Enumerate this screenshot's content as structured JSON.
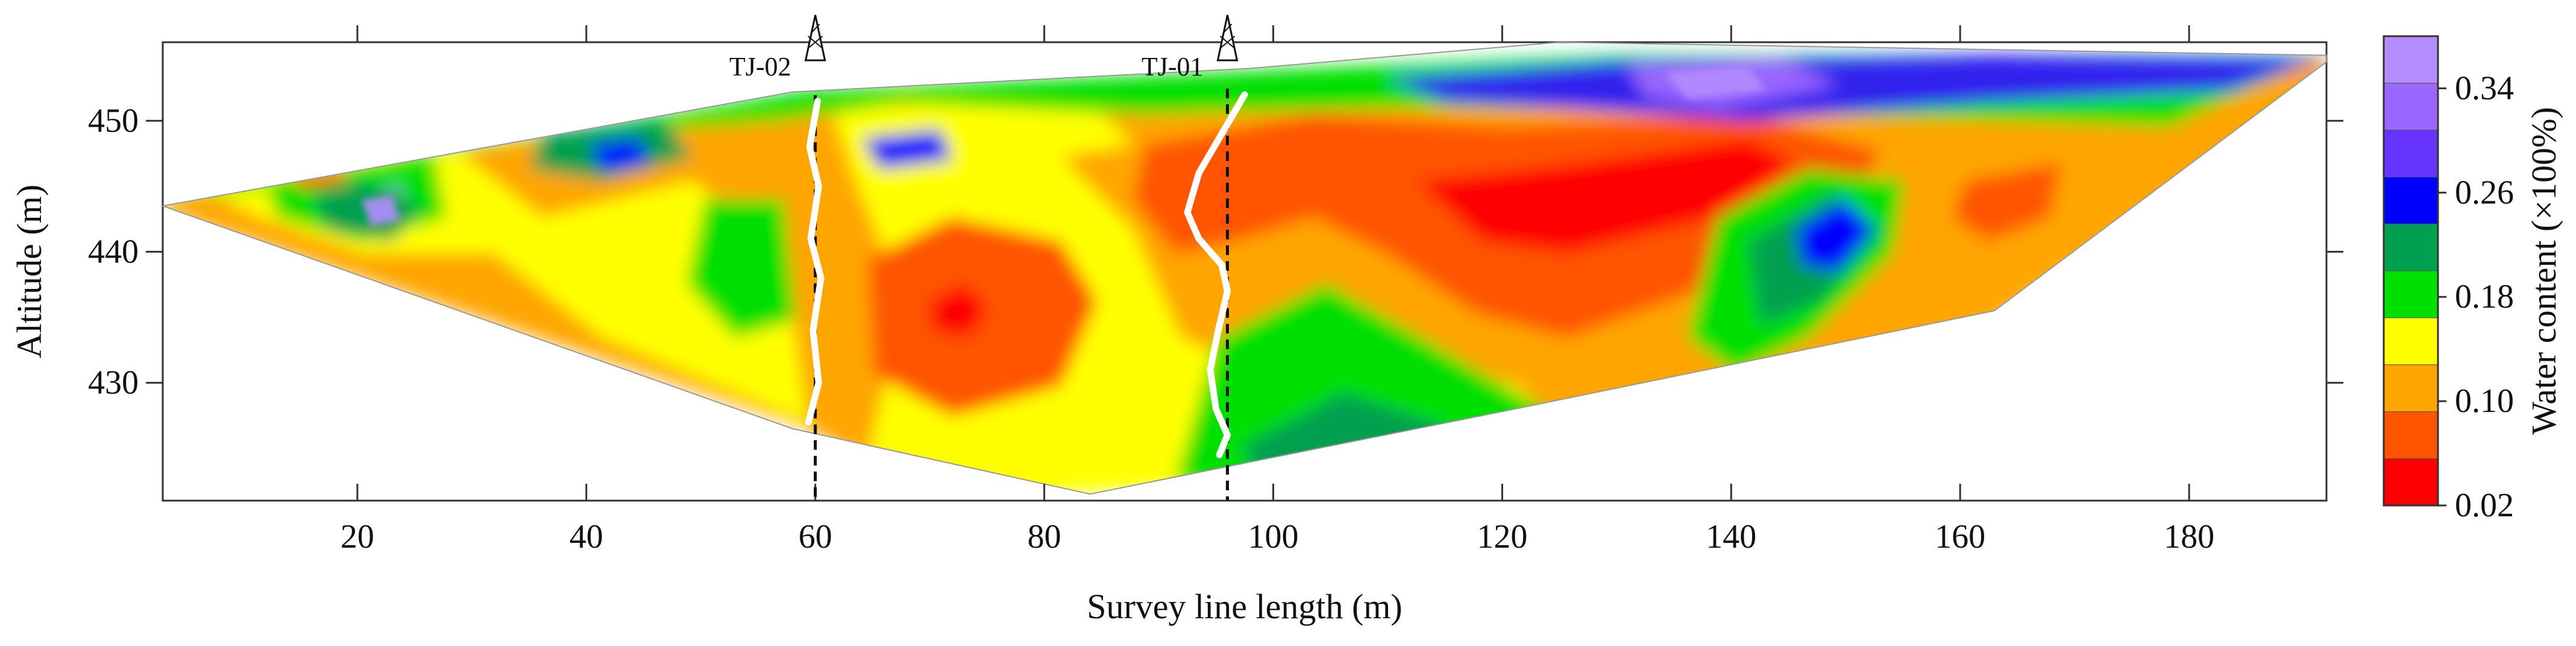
{
  "chart_data": {
    "type": "heatmap",
    "title": "",
    "xlabel": "Survey line length (m)",
    "ylabel": "Altitude (m)",
    "colorbar_label": "Water content (×100%)",
    "xlim": [
      3,
      192
    ],
    "ylim": [
      421,
      456
    ],
    "xticks": [
      20,
      40,
      60,
      80,
      100,
      120,
      140,
      160,
      180
    ],
    "yticks": [
      430,
      440,
      450
    ],
    "colorbar_ticks": [
      0.02,
      0.1,
      0.18,
      0.26,
      0.34
    ],
    "colorbar_range": [
      0.02,
      0.38
    ],
    "colorbar_colors": [
      "#ff0000",
      "#ff5500",
      "#ffa500",
      "#ffff00",
      "#00e000",
      "#00a050",
      "#0000ff",
      "#6633ff",
      "#9966ff",
      "#b48cff"
    ],
    "profile_outline": [
      [
        3,
        443.5
      ],
      [
        58,
        452.2
      ],
      [
        98,
        454.0
      ],
      [
        125,
        456.0
      ],
      [
        192,
        455.0
      ],
      [
        192,
        454.5
      ],
      [
        163,
        435.5
      ],
      [
        120,
        427.8
      ],
      [
        84,
        421.5
      ],
      [
        58,
        426.5
      ],
      [
        3,
        443.5
      ]
    ],
    "wells": [
      {
        "name": "TJ-02",
        "x": 60,
        "bottom": 421,
        "moisture_curve": [
          [
            60.2,
            451.5
          ],
          [
            59.5,
            448
          ],
          [
            60.3,
            445
          ],
          [
            59.6,
            441
          ],
          [
            60.5,
            438
          ],
          [
            59.8,
            434
          ],
          [
            60.3,
            430
          ],
          [
            59.4,
            427
          ]
        ]
      },
      {
        "name": "TJ-01",
        "x": 96,
        "bottom": 421,
        "moisture_curve": [
          [
            97.5,
            452
          ],
          [
            95.5,
            449
          ],
          [
            93.5,
            446
          ],
          [
            92.5,
            443
          ],
          [
            93.5,
            441
          ],
          [
            95.5,
            439
          ],
          [
            96,
            437
          ],
          [
            95.2,
            434
          ],
          [
            94.5,
            431
          ],
          [
            95,
            428
          ],
          [
            96,
            426
          ],
          [
            95.3,
            424.5
          ]
        ]
      }
    ]
  }
}
